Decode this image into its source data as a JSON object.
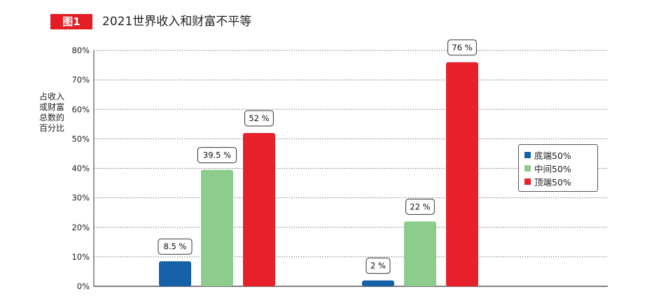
{
  "header": {
    "tag": "图1",
    "title": "2021世界收入和财富不平等"
  },
  "chart_data": {
    "type": "bar",
    "categories": [
      "",
      ""
    ],
    "series": [
      {
        "name": "底端50%",
        "color": "#1660a8",
        "values": [
          8.5,
          2
        ]
      },
      {
        "name": "中间50%",
        "color": "#8ccc8c",
        "values": [
          39.5,
          22
        ]
      },
      {
        "name": "顶端50%",
        "color": "#e8202a",
        "values": [
          52,
          76
        ]
      }
    ],
    "value_labels": [
      [
        "8.5 %",
        "2 %"
      ],
      [
        "39.5 %",
        "22 %"
      ],
      [
        "52 %",
        "76 %"
      ]
    ],
    "ylabel": "占收入或财富总数的百分比",
    "ylabel_lines": [
      "占收入",
      "或财富",
      "总数的",
      "百分比"
    ],
    "yticks": [
      0,
      10,
      20,
      30,
      40,
      50,
      60,
      70,
      80
    ],
    "ytick_labels": [
      "0%",
      "10%",
      "20%",
      "30%",
      "40%",
      "50%",
      "60%",
      "70%",
      "80%"
    ],
    "ylim": [
      0,
      80
    ],
    "grid": true,
    "legend_position": "right"
  }
}
